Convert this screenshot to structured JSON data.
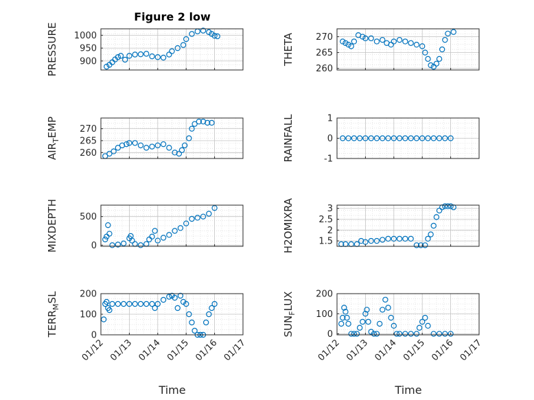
{
  "figure_title": "Figure 2 low",
  "x_axis_label": "Time",
  "x_tick_labels": [
    "01/12",
    "01/13",
    "01/14",
    "01/15",
    "01/16",
    "01/17"
  ],
  "marker_color": "#0072BD",
  "chart_data": [
    {
      "type": "scatter",
      "title": "Figure 2 low",
      "ylabel": "PRESSURE",
      "ylabel_parts": [
        [
          "PRESSURE",
          "n"
        ]
      ],
      "xlim": [
        0,
        5
      ],
      "ylim": [
        865,
        1025
      ],
      "yticks": [
        900,
        950,
        1000
      ],
      "ytick_labels": [
        "900",
        "950",
        "1000"
      ],
      "xtick_labels": [],
      "x": [
        0.2,
        0.3,
        0.4,
        0.5,
        0.6,
        0.7,
        0.85,
        1.0,
        1.2,
        1.4,
        1.6,
        1.8,
        2.0,
        2.2,
        2.4,
        2.5,
        2.7,
        2.9,
        3.0,
        3.2,
        3.4,
        3.6,
        3.8,
        3.9,
        4.0,
        4.1
      ],
      "y": [
        878,
        885,
        895,
        906,
        915,
        920,
        905,
        920,
        925,
        926,
        928,
        918,
        915,
        913,
        925,
        938,
        950,
        962,
        985,
        1005,
        1015,
        1018,
        1012,
        1005,
        998,
        996
      ]
    },
    {
      "type": "scatter",
      "ylabel": "THETA",
      "ylabel_parts": [
        [
          "THETA",
          "n"
        ]
      ],
      "xlim": [
        0,
        5
      ],
      "ylim": [
        259.5,
        272.5
      ],
      "yticks": [
        260,
        265,
        270
      ],
      "ytick_labels": [
        "260",
        "265",
        "270"
      ],
      "xtick_labels": [],
      "x": [
        0.2,
        0.3,
        0.4,
        0.5,
        0.6,
        0.75,
        0.9,
        1.0,
        1.2,
        1.4,
        1.6,
        1.75,
        1.9,
        2.0,
        2.2,
        2.4,
        2.6,
        2.8,
        3.0,
        3.1,
        3.2,
        3.3,
        3.4,
        3.5,
        3.6,
        3.7,
        3.8,
        3.9,
        4.1
      ],
      "y": [
        268.5,
        268,
        267.5,
        267,
        268.5,
        270.5,
        270,
        269.5,
        269.5,
        268.5,
        269,
        268,
        267.5,
        268.5,
        269,
        268.5,
        268,
        267.5,
        267,
        265,
        263,
        261,
        260.5,
        261.5,
        263,
        266,
        269,
        271,
        271.5
      ]
    },
    {
      "type": "scatter",
      "ylabel": "AIR_TEMP",
      "ylabel_parts": [
        [
          "AIR",
          "n"
        ],
        [
          "T",
          "sub"
        ],
        [
          "EMP",
          "n"
        ]
      ],
      "xlim": [
        0,
        5
      ],
      "ylim": [
        257.5,
        274.5
      ],
      "yticks": [
        260,
        265,
        270
      ],
      "ytick_labels": [
        "260",
        "265",
        "270"
      ],
      "xtick_labels": [],
      "x": [
        0.15,
        0.3,
        0.45,
        0.6,
        0.75,
        0.9,
        1.0,
        1.2,
        1.4,
        1.6,
        1.8,
        2.0,
        2.2,
        2.4,
        2.6,
        2.75,
        2.85,
        2.95,
        3.1,
        3.2,
        3.3,
        3.45,
        3.6,
        3.75,
        3.9
      ],
      "y": [
        258.5,
        259.5,
        260.5,
        262,
        263,
        263.5,
        264,
        264,
        263,
        262,
        262.5,
        263,
        263.5,
        262,
        260,
        259.5,
        261,
        263,
        266,
        270,
        272,
        273,
        273,
        272.5,
        272.5
      ]
    },
    {
      "type": "scatter",
      "ylabel": "RAINFALL",
      "ylabel_parts": [
        [
          "RAINFALL",
          "n"
        ]
      ],
      "xlim": [
        0,
        5
      ],
      "ylim": [
        -1,
        1
      ],
      "yticks": [
        -1,
        0,
        1
      ],
      "ytick_labels": [
        "-1",
        "0",
        "1"
      ],
      "xtick_labels": [],
      "x": [
        0.2,
        0.4,
        0.6,
        0.8,
        1.0,
        1.2,
        1.4,
        1.6,
        1.8,
        2.0,
        2.2,
        2.4,
        2.6,
        2.8,
        3.0,
        3.2,
        3.4,
        3.6,
        3.8,
        4.0
      ],
      "y": [
        0,
        0,
        0,
        0,
        0,
        0,
        0,
        0,
        0,
        0,
        0,
        0,
        0,
        0,
        0,
        0,
        0,
        0,
        0,
        0
      ]
    },
    {
      "type": "scatter",
      "ylabel": "MIXDEPTH",
      "ylabel_parts": [
        [
          "MIXDEPTH",
          "n"
        ]
      ],
      "xlim": [
        0,
        5
      ],
      "ylim": [
        -20,
        700
      ],
      "yticks": [
        0,
        500
      ],
      "ytick_labels": [
        "0",
        "500"
      ],
      "xtick_labels": [],
      "x": [
        0.15,
        0.2,
        0.25,
        0.3,
        0.4,
        0.6,
        0.8,
        1.0,
        1.05,
        1.1,
        1.2,
        1.4,
        1.6,
        1.7,
        1.8,
        1.9,
        2.0,
        2.2,
        2.4,
        2.6,
        2.8,
        3.0,
        3.2,
        3.4,
        3.6,
        3.8,
        4.0
      ],
      "y": [
        100,
        150,
        350,
        200,
        0,
        10,
        30,
        120,
        160,
        80,
        20,
        0,
        20,
        100,
        150,
        250,
        80,
        130,
        180,
        250,
        300,
        380,
        460,
        480,
        500,
        550,
        650
      ]
    },
    {
      "type": "scatter",
      "ylabel": "H2OMIXRA",
      "ylabel_parts": [
        [
          "H2OMIXRA",
          "n"
        ]
      ],
      "xlim": [
        0,
        5
      ],
      "ylim": [
        1.25,
        3.15
      ],
      "yticks": [
        1.5,
        2,
        2.5,
        3
      ],
      "ytick_labels": [
        "1.5",
        "2",
        "2.5",
        "3"
      ],
      "xtick_labels": [],
      "x": [
        0.15,
        0.3,
        0.5,
        0.7,
        0.85,
        1.0,
        1.2,
        1.4,
        1.6,
        1.8,
        2.0,
        2.2,
        2.4,
        2.6,
        2.8,
        2.95,
        3.1,
        3.2,
        3.3,
        3.4,
        3.5,
        3.6,
        3.7,
        3.8,
        3.9,
        4.0,
        4.1
      ],
      "y": [
        1.35,
        1.35,
        1.35,
        1.35,
        1.5,
        1.45,
        1.5,
        1.5,
        1.55,
        1.6,
        1.6,
        1.6,
        1.6,
        1.6,
        1.3,
        1.3,
        1.3,
        1.6,
        1.8,
        2.2,
        2.6,
        2.9,
        3.05,
        3.1,
        3.1,
        3.1,
        3.05
      ]
    },
    {
      "type": "scatter",
      "ylabel": "TERR_MSL",
      "ylabel_parts": [
        [
          "TERR",
          "n"
        ],
        [
          "M",
          "sub"
        ],
        [
          "SL",
          "n"
        ]
      ],
      "xlim": [
        0,
        5
      ],
      "ylim": [
        0,
        200
      ],
      "yticks": [
        0,
        100,
        200
      ],
      "ytick_labels": [
        "0",
        "100",
        "200"
      ],
      "xtick_labels": [
        "01/12",
        "01/13",
        "01/14",
        "01/15",
        "01/16",
        "01/17"
      ],
      "x": [
        0.1,
        0.15,
        0.2,
        0.25,
        0.3,
        0.4,
        0.6,
        0.8,
        1.0,
        1.2,
        1.4,
        1.6,
        1.8,
        1.9,
        2.0,
        2.2,
        2.4,
        2.5,
        2.6,
        2.7,
        2.8,
        2.9,
        3.0,
        3.1,
        3.2,
        3.3,
        3.4,
        3.5,
        3.6,
        3.7,
        3.8,
        3.9,
        4.0
      ],
      "y": [
        75,
        150,
        160,
        130,
        120,
        150,
        150,
        150,
        150,
        150,
        150,
        150,
        150,
        130,
        150,
        170,
        185,
        190,
        180,
        130,
        190,
        160,
        150,
        100,
        60,
        20,
        0,
        0,
        0,
        60,
        100,
        130,
        150
      ]
    },
    {
      "type": "scatter",
      "ylabel": "SUN_FLUX",
      "ylabel_parts": [
        [
          "SUN",
          "n"
        ],
        [
          "F",
          "sub"
        ],
        [
          "LUX",
          "n"
        ]
      ],
      "xlim": [
        0,
        5
      ],
      "ylim": [
        -5,
        200
      ],
      "yticks": [
        0,
        100,
        200
      ],
      "ytick_labels": [
        "0",
        "100",
        "200"
      ],
      "xtick_labels": [
        "01/12",
        "01/13",
        "01/14",
        "01/15",
        "01/16",
        "01/17"
      ],
      "x": [
        0.15,
        0.2,
        0.25,
        0.3,
        0.35,
        0.4,
        0.5,
        0.6,
        0.7,
        0.8,
        0.9,
        1.0,
        1.05,
        1.1,
        1.2,
        1.3,
        1.4,
        1.5,
        1.6,
        1.7,
        1.8,
        1.9,
        2.0,
        2.1,
        2.2,
        2.4,
        2.6,
        2.8,
        2.9,
        3.0,
        3.1,
        3.2,
        3.4,
        3.6,
        3.8,
        4.0
      ],
      "y": [
        50,
        80,
        130,
        110,
        80,
        50,
        0,
        0,
        0,
        30,
        60,
        100,
        120,
        60,
        10,
        0,
        0,
        50,
        120,
        170,
        130,
        80,
        40,
        0,
        0,
        0,
        0,
        0,
        30,
        60,
        80,
        40,
        0,
        0,
        0,
        0
      ]
    }
  ]
}
